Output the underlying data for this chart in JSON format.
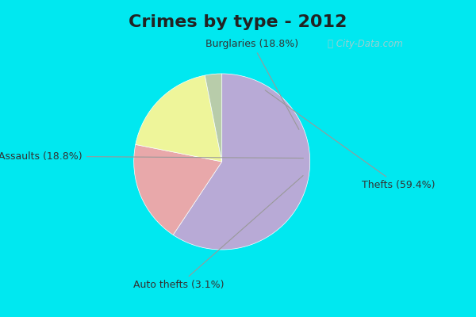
{
  "title": "Crimes by type - 2012",
  "slices": [
    {
      "label": "Thefts (59.4%)",
      "value": 59.4,
      "color": "#b8aad6"
    },
    {
      "label": "Burglaries (18.8%)",
      "value": 18.8,
      "color": "#e8a8aa"
    },
    {
      "label": "Assaults (18.8%)",
      "value": 18.8,
      "color": "#eef59a"
    },
    {
      "label": "Auto thefts (3.1%)",
      "value": 3.1,
      "color": "#b8ccaa"
    }
  ],
  "border_color": "#00e8f0",
  "inner_bg": "#d8ede4",
  "title_fontsize": 16,
  "label_fontsize": 9,
  "startangle": 90,
  "watermark": "ⓘ City-Data.com",
  "border_width": 8
}
